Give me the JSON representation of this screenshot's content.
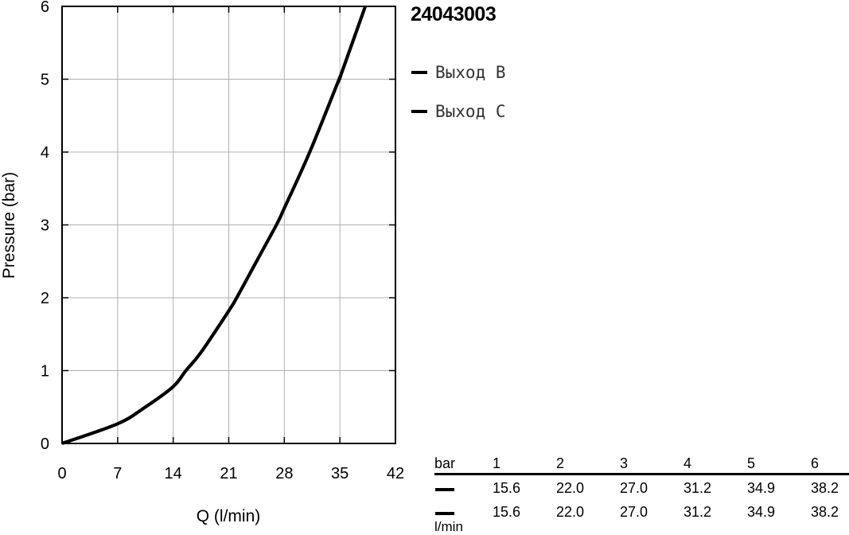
{
  "chart_data": {
    "type": "line",
    "title": "24043003",
    "xlabel": "Q (l/min)",
    "ylabel": "Pressure (bar)",
    "xlim": [
      0,
      42
    ],
    "ylim": [
      0,
      6
    ],
    "xticks": [
      0,
      7,
      14,
      21,
      28,
      35,
      42
    ],
    "yticks": [
      0,
      1,
      2,
      3,
      4,
      5,
      6
    ],
    "grid": true,
    "legend_position": "right",
    "line_color": "#000000",
    "series": [
      {
        "name": "Выход B",
        "x": [
          0,
          7,
          10.5,
          14,
          15.6,
          17.5,
          21,
          22.0,
          24.5,
          27.0,
          28,
          31.2,
          34.9,
          35,
          38.2
        ],
        "y": [
          0,
          0.27,
          0.5,
          0.78,
          1,
          1.25,
          1.82,
          2,
          2.5,
          3,
          3.23,
          4,
          5,
          5.02,
          6
        ]
      },
      {
        "name": "Выход C",
        "x": [
          0,
          7,
          10.5,
          14,
          15.6,
          17.5,
          21,
          22.0,
          24.5,
          27.0,
          28,
          31.2,
          34.9,
          35,
          38.2
        ],
        "y": [
          0,
          0.27,
          0.5,
          0.78,
          1,
          1.25,
          1.82,
          2,
          2.5,
          3,
          3.23,
          4,
          5,
          5.02,
          6
        ]
      }
    ]
  },
  "table": {
    "header_label": "bar",
    "unit_label": "l/min",
    "columns": [
      "1",
      "2",
      "3",
      "4",
      "5",
      "6"
    ],
    "rows": [
      {
        "values": [
          "15.6",
          "22.0",
          "27.0",
          "31.2",
          "34.9",
          "38.2"
        ]
      },
      {
        "values": [
          "15.6",
          "22.0",
          "27.0",
          "31.2",
          "34.9",
          "38.2"
        ]
      }
    ]
  }
}
